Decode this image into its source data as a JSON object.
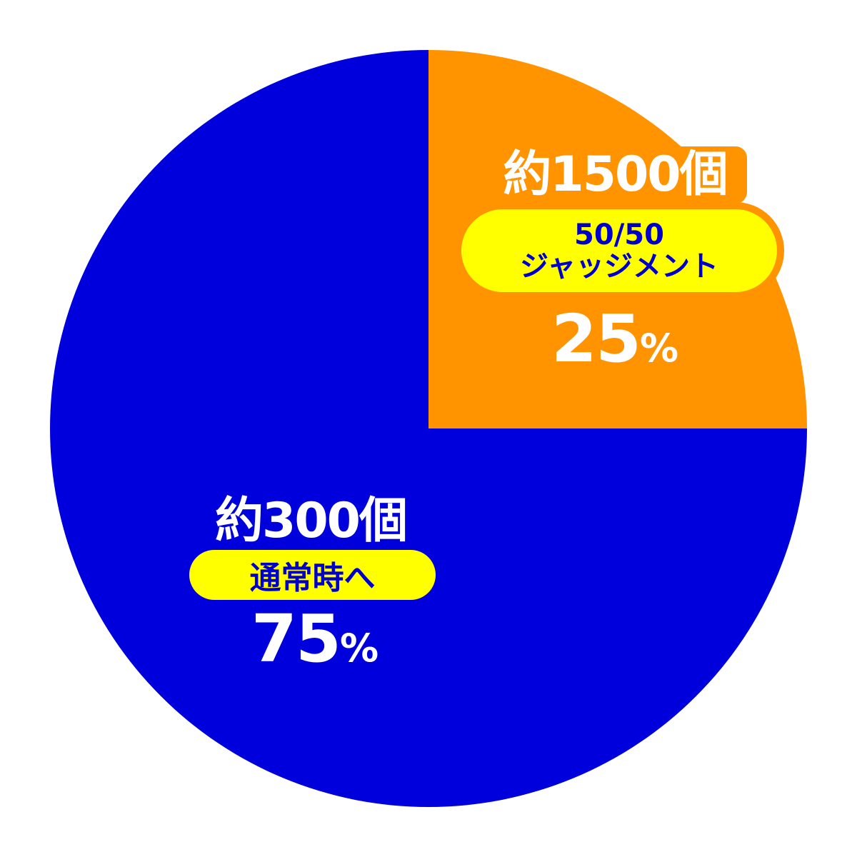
{
  "chart_data": {
    "type": "pie",
    "start_angle": "12 o'clock",
    "direction": "clockwise",
    "slices": [
      {
        "label": "50/50 ジャッジメント",
        "value": 25,
        "value_label": "25",
        "unit": "%",
        "count_label": "約1500個",
        "color": "#ff9400"
      },
      {
        "label": "通常時へ",
        "value": 75,
        "value_label": "75",
        "unit": "%",
        "count_label": "約300個",
        "color": "#0000dd"
      }
    ],
    "pill_color": "#ffff00",
    "pill_text_color": "#0000cc"
  }
}
